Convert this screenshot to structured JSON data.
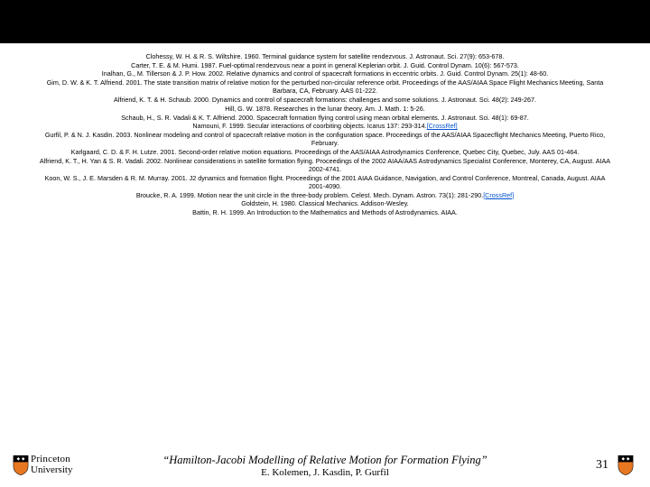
{
  "refs": [
    "Clohessy, W. H. & R. S. Wiltshire. 1960. Terminal guidance system for satellite rendezvous. J. Astronaut. Sci. 27(9): 653-678.",
    "Carter, T. E. & M. Humi. 1987. Fuel-optimal rendezvous near a point in general Keplerian orbit. J. Guid. Control Dynam. 10(6): 567-573.",
    "Inalhan, G., M. Tillerson & J. P. How. 2002. Relative dynamics and control of spacecraft formations in eccentric orbits. J. Guid. Control Dynam. 25(1): 48-60.",
    "Gim, D. W. & K. T. Alfriend. 2001. The state transition matrix of relative motion for the perturbed non-circular reference orbit. Proceedings of the AAS/AIAA Space Flight Mechanics Meeting, Santa Barbara, CA, February. AAS 01-222.",
    "Alfriend, K. T. & H. Schaub. 2000. Dynamics and control of spacecraft formations: challenges and some solutions. J. Astronaut. Sci. 48(2): 249-267.",
    "Hill, G. W. 1878. Researches in the lunar theory. Am. J. Math. 1: 5-26.",
    "Schaub, H., S. R. Vadali & K. T. Alfriend. 2000. Spacecraft formation flying control using mean orbital elements. J. Astronaut. Sci. 48(1): 69-87.",
    "Namouni, F. 1999. Secular interactions of coorbiting objects. Icarus 137: 293-314.",
    "Gurfil, P. & N. J. Kasdin. 2003. Nonlinear modeling and control of spacecraft relative motion in the configuration space. Proceedings of the AAS/AIAA Spacecflight Mechanics Meeting, Puerto Rico, February.",
    "Karlgaard, C. D. & F. H. Lutze. 2001. Second-order relative motion equations. Proceedings of the AAS/AIAA Astrodynamics Conference, Quebec City, Quebec, July. AAS 01-464.",
    "Alfriend, K. T., H. Yan & S. R. Vadali. 2002. Nonlinear considerations in satellite formation flying. Proceedings of the 2002 AIAA/AAS Astrodynamics Specialist Conference, Monterey, CA, August. AIAA 2002-4741.",
    "Koon, W. S., J. E. Marsden & R. M. Murray. 2001. J2 dynamics and formation flight. Proceedings of the 2001 AIAA Guidance, Navigation, and Control Conference, Montreal, Canada, August. AIAA 2001-4090.",
    "Broucke, R. A. 1999. Motion near the unit circle in the three-body problem. Celest. Mech. Dynam. Astron. 73(1): 281-290.",
    "Goldstein, H. 1980. Classical Mechanics. Addison-Wesley.",
    "Battin, R. H. 1999. An Introduction to the Mathematics and Methods of Astrodynamics. AIAA."
  ],
  "crossref_indices": [
    7,
    12
  ],
  "crossref_label": "[CrossRef]",
  "footer": {
    "university_line1": "Princeton",
    "university_line2": "University",
    "title": "“Hamilton-Jacobi Modelling of Relative Motion for Formation Flying”",
    "authors": "E. Kolemen, J. Kasdin, P. Gurfil",
    "page": "31"
  },
  "colors": {
    "topbar": "#000000",
    "background": "#ffffff",
    "link": "#0052cc",
    "shield_orange": "#e87722",
    "shield_black": "#000000"
  }
}
